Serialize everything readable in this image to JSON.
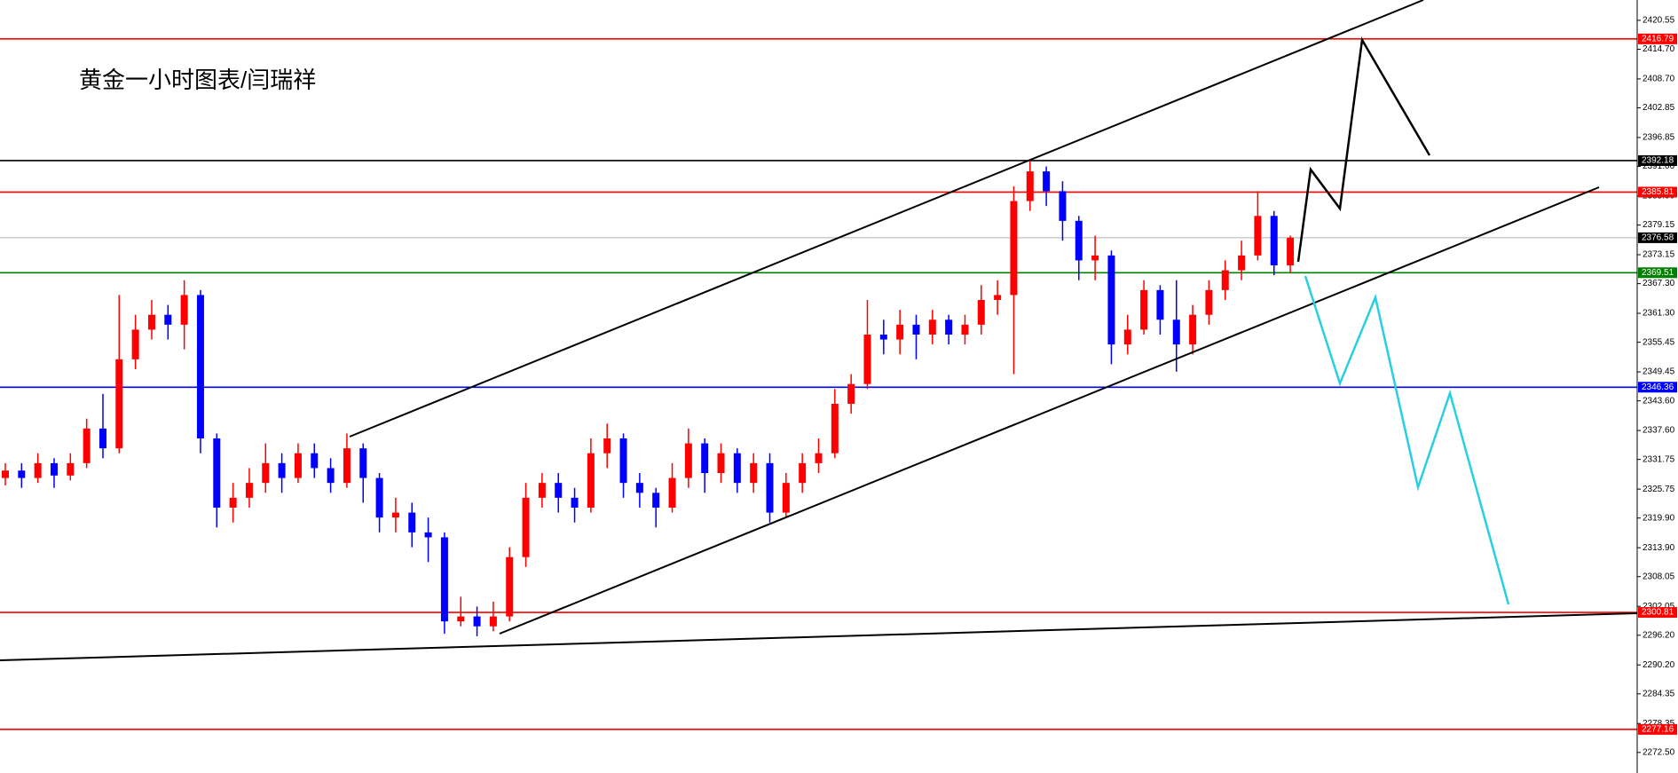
{
  "chart_data": {
    "type": "candlestick",
    "title": "黄金一小时图表/闫瑞祥",
    "ylim": [
      2268.34,
      2424.66
    ],
    "yticks": [
      2420.55,
      {
        "value": 2414.7,
        "label": "2414.70"
      },
      {
        "value": 2408.7,
        "label": "2408.70"
      },
      2402.85,
      2396.85,
      {
        "value": 2391.0,
        "label": "2391.00"
      },
      {
        "value": 2385.0,
        "label": "2385.00"
      },
      2379.15,
      2373.15,
      {
        "value": 2367.3,
        "label": "2367.30"
      },
      {
        "value": 2361.3,
        "label": "2361.30"
      },
      2355.45,
      2349.45,
      {
        "value": 2343.6,
        "label": "2343.60"
      },
      {
        "value": 2337.6,
        "label": "2337.60"
      },
      2331.75,
      2325.75,
      {
        "value": 2319.9,
        "label": "2319.90"
      },
      {
        "value": 2313.9,
        "label": "2313.90"
      },
      2308.05,
      2302.05,
      {
        "value": 2296.2,
        "label": "2296.20"
      },
      {
        "value": 2290.2,
        "label": "2290.20"
      },
      2284.35,
      2278.35,
      {
        "value": 2272.5,
        "label": "2272.50"
      }
    ],
    "up_color": "#ff0000",
    "down_color": "#0000ff",
    "open": [
      2328,
      2329.5,
      2328,
      2331,
      2328.5,
      2331,
      2338,
      2334,
      2352,
      2358,
      2361,
      2359,
      2365,
      2336,
      2322,
      2324,
      2327,
      2331,
      2328,
      2333,
      2330,
      2327,
      2334,
      2328,
      2320,
      2321,
      2317,
      2316,
      2299,
      2300,
      2298,
      2300,
      2312,
      2324,
      2327,
      2324,
      2322,
      2333,
      2336,
      2327,
      2325,
      2322,
      2328,
      2335,
      2329,
      2333,
      2327,
      2331,
      2321,
      2327,
      2331,
      2333,
      2343,
      2347,
      2357,
      2356,
      2359,
      2357,
      2360,
      2357,
      2359,
      2364,
      2365,
      2384,
      2390,
      2386,
      2380,
      2372,
      2373,
      2355,
      2358,
      2366,
      2360,
      2355,
      2361,
      2366,
      2370,
      2373,
      2381,
      2371
    ],
    "high": [
      2331,
      2331,
      2333,
      2332,
      2333,
      2340,
      2345,
      2365,
      2361,
      2364,
      2363,
      2368,
      2366,
      2337,
      2327,
      2330,
      2335,
      2333,
      2335,
      2335,
      2332,
      2337,
      2335,
      2329,
      2324,
      2323,
      2320,
      2317,
      2304,
      2302,
      2303,
      2314,
      2327,
      2329,
      2329,
      2326,
      2336,
      2339,
      2337,
      2329,
      2326,
      2331,
      2338,
      2336,
      2335,
      2334,
      2333,
      2333,
      2329,
      2333,
      2336,
      2346,
      2349,
      2364,
      2360,
      2362,
      2361,
      2362,
      2361,
      2361,
      2367,
      2368,
      2387,
      2392.5,
      2391,
      2388,
      2381,
      2377,
      2374,
      2361,
      2368,
      2367,
      2368,
      2363,
      2368,
      2372,
      2376,
      2386,
      2382,
      2377
    ],
    "low": [
      2326.5,
      2326,
      2327,
      2326,
      2327.5,
      2330,
      2332,
      2333,
      2350,
      2356,
      2356,
      2354,
      2333,
      2318,
      2319,
      2322,
      2325,
      2325,
      2327,
      2328,
      2325,
      2326,
      2323,
      2317,
      2317,
      2314,
      2311,
      2296.5,
      2298,
      2296,
      2297,
      2299,
      2310,
      2322,
      2321,
      2319,
      2321,
      2330,
      2324,
      2322,
      2318,
      2321,
      2326,
      2325,
      2327,
      2325,
      2325,
      2319,
      2320,
      2325,
      2329,
      2332,
      2341,
      2346,
      2353,
      2353,
      2352,
      2355,
      2355,
      2355,
      2357,
      2361,
      2349,
      2382,
      2383,
      2376,
      2368,
      2368,
      2351,
      2353,
      2357,
      2357,
      2349.5,
      2353,
      2359,
      2364,
      2368,
      2372,
      2369,
      2369.5
    ],
    "close": [
      2329.5,
      2328,
      2331,
      2328.5,
      2331,
      2338,
      2334,
      2352,
      2358,
      2361,
      2359,
      2365,
      2336,
      2322,
      2324,
      2327,
      2331,
      2328,
      2333,
      2330,
      2327,
      2334,
      2328,
      2320,
      2321,
      2317,
      2316,
      2299,
      2300,
      2298,
      2300,
      2312,
      2324,
      2327,
      2324,
      2322,
      2333,
      2336,
      2327,
      2325,
      2322,
      2328,
      2335,
      2329,
      2333,
      2327,
      2331,
      2321,
      2327,
      2331,
      2333,
      2343,
      2347,
      2357,
      2356,
      2359,
      2357,
      2360,
      2357,
      2359,
      2364,
      2365,
      2384,
      2390,
      2386,
      2380,
      2372,
      2373,
      2355,
      2358,
      2366,
      2360,
      2355,
      2361,
      2366,
      2370,
      2373,
      2381,
      2371,
      2376.58
    ],
    "levels": [
      {
        "value": 2416.79,
        "color": "#ff0000"
      },
      {
        "value": 2392.18,
        "color": "#000000"
      },
      {
        "value": 2385.81,
        "color": "#ff0000"
      },
      {
        "value": 2376.58,
        "color": "#b0b0b0"
      },
      {
        "value": 2369.51,
        "color": "#008000"
      },
      {
        "value": 2346.36,
        "color": "#0000ff"
      },
      {
        "value": 2300.81,
        "color": "#ff0000"
      },
      {
        "value": 2277.16,
        "color": "#ff0000"
      }
    ]
  }
}
